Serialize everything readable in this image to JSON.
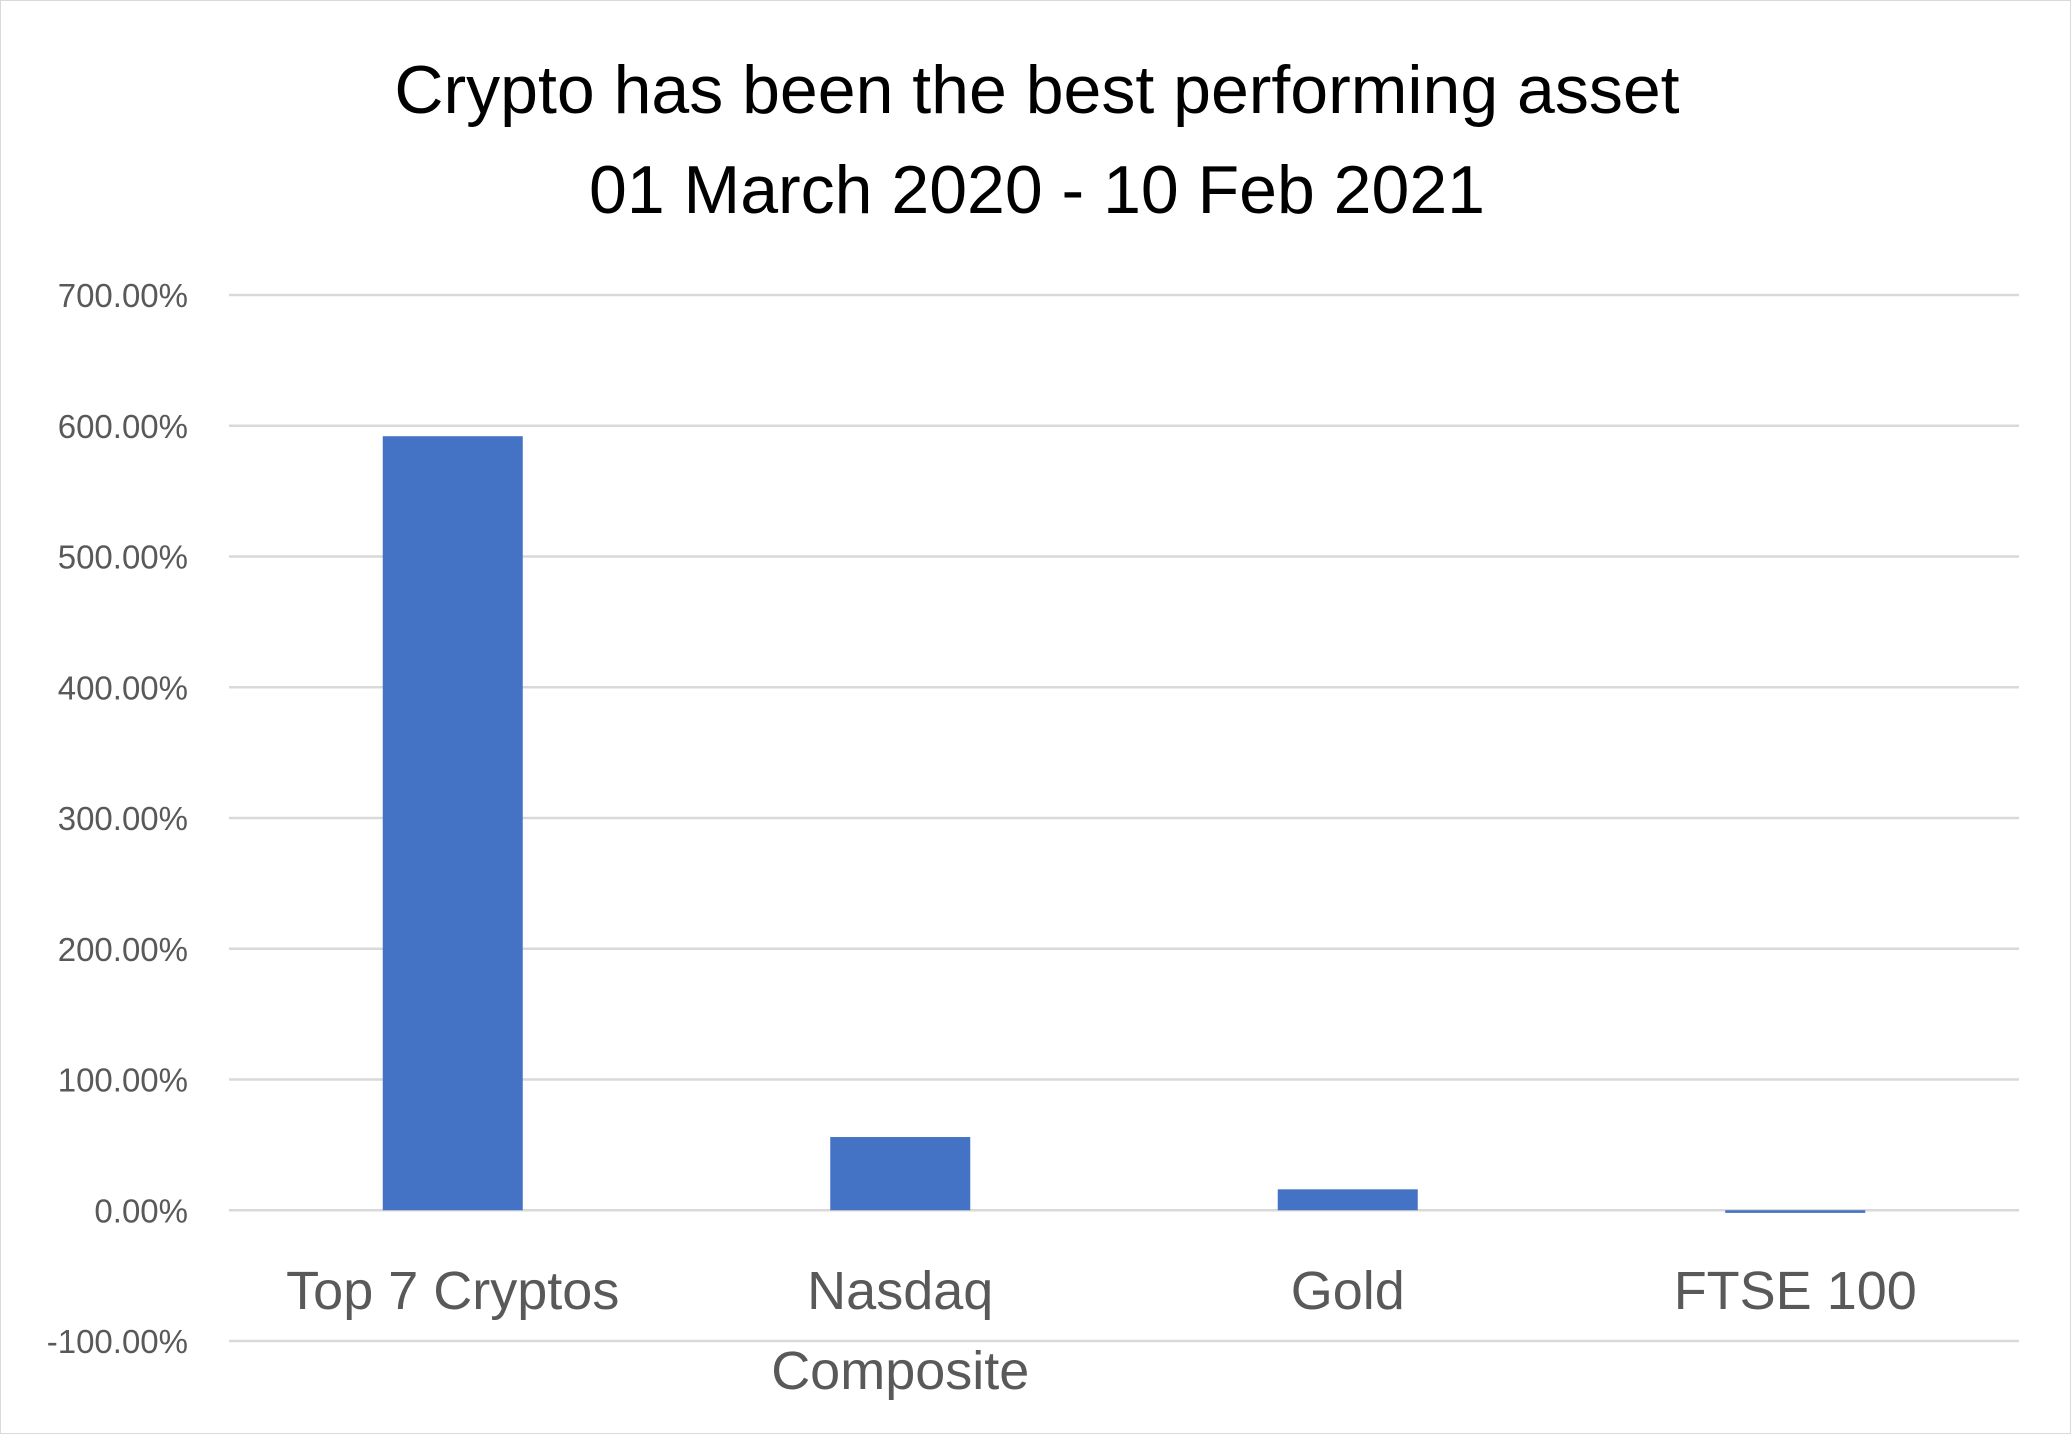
{
  "chart_data": {
    "type": "bar",
    "title_lines": [
      "Crypto has been the best performing asset",
      "01 March 2020 - 10 Feb 2021"
    ],
    "categories": [
      [
        "Top 7 Cryptos"
      ],
      [
        "Nasdaq",
        "Composite"
      ],
      [
        "Gold"
      ],
      [
        "FTSE 100"
      ]
    ],
    "series": [
      {
        "values": [
          592,
          56,
          16,
          -2
        ]
      }
    ],
    "ylim": [
      -100,
      700
    ],
    "yticks": [
      700,
      600,
      500,
      400,
      300,
      200,
      100,
      0,
      -100
    ],
    "ytick_labels": [
      "700.00%",
      "600.00%",
      "500.00%",
      "400.00%",
      "300.00%",
      "200.00%",
      "100.00%",
      "0.00%",
      "-100.00%"
    ],
    "grid": true,
    "legend": "none",
    "bar_color": "#4472c4"
  }
}
